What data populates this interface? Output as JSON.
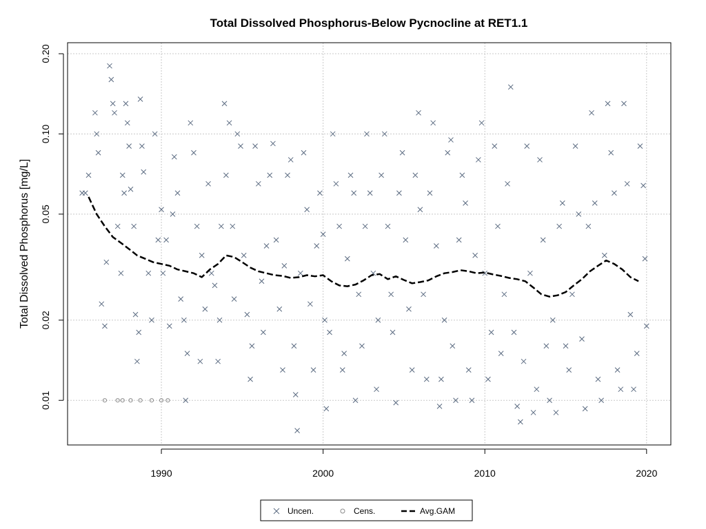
{
  "chart_data": {
    "type": "scatter",
    "title": "Total Dissolved Phosphorus-Below Pycnocline at RET1.1",
    "xlabel": "",
    "ylabel": "Total Dissolved Phosphorus [mg/L]",
    "xlim": [
      1984.2,
      2021.5
    ],
    "ylim": [
      0.0068,
      0.22
    ],
    "yscale": "log",
    "grid": true,
    "legend_position": "bottom-center",
    "x_ticks": [
      1990,
      2000,
      2010,
      2020
    ],
    "x_tick_labels": [
      "1990",
      "2000",
      "2010",
      "2020"
    ],
    "y_ticks": [
      0.01,
      0.02,
      0.05,
      0.1,
      0.2
    ],
    "y_tick_labels": [
      "0.01",
      "0.02",
      "0.05",
      "0.10",
      "0.20"
    ],
    "colors": {
      "points": "#5a6a80",
      "censored": "#8a8a8a",
      "gam": "#000000",
      "grid": "#c8c8c8"
    },
    "series": [
      {
        "name": "Uncen.",
        "marker": "x",
        "points": [
          [
            1985.1,
            0.06
          ],
          [
            1985.3,
            0.06
          ],
          [
            1985.5,
            0.07
          ],
          [
            1985.9,
            0.12
          ],
          [
            1986.0,
            0.1
          ],
          [
            1986.1,
            0.085
          ],
          [
            1986.3,
            0.023
          ],
          [
            1986.5,
            0.019
          ],
          [
            1986.6,
            0.033
          ],
          [
            1986.8,
            0.18
          ],
          [
            1986.9,
            0.16
          ],
          [
            1987.0,
            0.13
          ],
          [
            1987.1,
            0.12
          ],
          [
            1987.3,
            0.045
          ],
          [
            1987.5,
            0.03
          ],
          [
            1987.6,
            0.07
          ],
          [
            1987.7,
            0.06
          ],
          [
            1987.8,
            0.13
          ],
          [
            1987.9,
            0.11
          ],
          [
            1988.0,
            0.09
          ],
          [
            1988.1,
            0.062
          ],
          [
            1988.3,
            0.045
          ],
          [
            1988.4,
            0.021
          ],
          [
            1988.5,
            0.014
          ],
          [
            1988.6,
            0.018
          ],
          [
            1988.7,
            0.135
          ],
          [
            1988.8,
            0.09
          ],
          [
            1988.9,
            0.072
          ],
          [
            1989.2,
            0.03
          ],
          [
            1989.4,
            0.02
          ],
          [
            1989.6,
            0.1
          ],
          [
            1989.8,
            0.04
          ],
          [
            1990.0,
            0.052
          ],
          [
            1990.1,
            0.03
          ],
          [
            1990.3,
            0.04
          ],
          [
            1990.5,
            0.019
          ],
          [
            1990.7,
            0.05
          ],
          [
            1990.8,
            0.082
          ],
          [
            1991.0,
            0.06
          ],
          [
            1991.2,
            0.024
          ],
          [
            1991.4,
            0.02
          ],
          [
            1991.5,
            0.01
          ],
          [
            1991.6,
            0.015
          ],
          [
            1991.8,
            0.11
          ],
          [
            1992.0,
            0.085
          ],
          [
            1992.2,
            0.045
          ],
          [
            1992.4,
            0.014
          ],
          [
            1992.5,
            0.035
          ],
          [
            1992.7,
            0.022
          ],
          [
            1992.9,
            0.065
          ],
          [
            1993.1,
            0.03
          ],
          [
            1993.3,
            0.027
          ],
          [
            1993.5,
            0.014
          ],
          [
            1993.6,
            0.02
          ],
          [
            1993.7,
            0.045
          ],
          [
            1993.9,
            0.13
          ],
          [
            1994.0,
            0.07
          ],
          [
            1994.2,
            0.11
          ],
          [
            1994.4,
            0.045
          ],
          [
            1994.5,
            0.024
          ],
          [
            1994.7,
            0.1
          ],
          [
            1994.9,
            0.09
          ],
          [
            1995.1,
            0.035
          ],
          [
            1995.3,
            0.021
          ],
          [
            1995.5,
            0.012
          ],
          [
            1995.6,
            0.016
          ],
          [
            1995.8,
            0.09
          ],
          [
            1996.0,
            0.065
          ],
          [
            1996.2,
            0.028
          ],
          [
            1996.3,
            0.018
          ],
          [
            1996.5,
            0.038
          ],
          [
            1996.7,
            0.07
          ],
          [
            1996.9,
            0.092
          ],
          [
            1997.1,
            0.04
          ],
          [
            1997.3,
            0.022
          ],
          [
            1997.5,
            0.013
          ],
          [
            1997.6,
            0.032
          ],
          [
            1997.8,
            0.07
          ],
          [
            1998.0,
            0.08
          ],
          [
            1998.2,
            0.016
          ],
          [
            1998.3,
            0.0105
          ],
          [
            1998.4,
            0.0077
          ],
          [
            1998.6,
            0.03
          ],
          [
            1998.8,
            0.085
          ],
          [
            1999.0,
            0.052
          ],
          [
            1999.2,
            0.023
          ],
          [
            1999.4,
            0.013
          ],
          [
            1999.6,
            0.038
          ],
          [
            1999.8,
            0.06
          ],
          [
            2000.0,
            0.042
          ],
          [
            2000.1,
            0.02
          ],
          [
            2000.2,
            0.0093
          ],
          [
            2000.4,
            0.018
          ],
          [
            2000.6,
            0.1
          ],
          [
            2000.8,
            0.065
          ],
          [
            2001.0,
            0.045
          ],
          [
            2001.2,
            0.013
          ],
          [
            2001.3,
            0.015
          ],
          [
            2001.5,
            0.034
          ],
          [
            2001.7,
            0.07
          ],
          [
            2001.9,
            0.06
          ],
          [
            2002.0,
            0.01
          ],
          [
            2002.2,
            0.025
          ],
          [
            2002.4,
            0.016
          ],
          [
            2002.6,
            0.045
          ],
          [
            2002.7,
            0.1
          ],
          [
            2002.9,
            0.06
          ],
          [
            2003.1,
            0.03
          ],
          [
            2003.3,
            0.011
          ],
          [
            2003.4,
            0.02
          ],
          [
            2003.6,
            0.07
          ],
          [
            2003.8,
            0.1
          ],
          [
            2004.0,
            0.045
          ],
          [
            2004.2,
            0.025
          ],
          [
            2004.3,
            0.018
          ],
          [
            2004.5,
            0.0098
          ],
          [
            2004.7,
            0.06
          ],
          [
            2004.9,
            0.085
          ],
          [
            2005.1,
            0.04
          ],
          [
            2005.3,
            0.022
          ],
          [
            2005.5,
            0.013
          ],
          [
            2005.7,
            0.07
          ],
          [
            2005.9,
            0.12
          ],
          [
            2006.0,
            0.052
          ],
          [
            2006.2,
            0.025
          ],
          [
            2006.4,
            0.012
          ],
          [
            2006.6,
            0.06
          ],
          [
            2006.8,
            0.11
          ],
          [
            2007.0,
            0.038
          ],
          [
            2007.2,
            0.0095
          ],
          [
            2007.3,
            0.012
          ],
          [
            2007.5,
            0.02
          ],
          [
            2007.7,
            0.085
          ],
          [
            2007.9,
            0.095
          ],
          [
            2008.0,
            0.016
          ],
          [
            2008.2,
            0.01
          ],
          [
            2008.4,
            0.04
          ],
          [
            2008.6,
            0.07
          ],
          [
            2008.8,
            0.055
          ],
          [
            2009.0,
            0.013
          ],
          [
            2009.2,
            0.01
          ],
          [
            2009.4,
            0.035
          ],
          [
            2009.6,
            0.08
          ],
          [
            2009.8,
            0.11
          ],
          [
            2010.0,
            0.03
          ],
          [
            2010.2,
            0.012
          ],
          [
            2010.4,
            0.018
          ],
          [
            2010.6,
            0.09
          ],
          [
            2010.8,
            0.045
          ],
          [
            2011.0,
            0.015
          ],
          [
            2011.2,
            0.025
          ],
          [
            2011.4,
            0.065
          ],
          [
            2011.6,
            0.15
          ],
          [
            2011.8,
            0.018
          ],
          [
            2012.0,
            0.0095
          ],
          [
            2012.2,
            0.0083
          ],
          [
            2012.4,
            0.014
          ],
          [
            2012.6,
            0.09
          ],
          [
            2012.8,
            0.03
          ],
          [
            2013.0,
            0.009
          ],
          [
            2013.2,
            0.011
          ],
          [
            2013.4,
            0.08
          ],
          [
            2013.6,
            0.04
          ],
          [
            2013.8,
            0.016
          ],
          [
            2014.0,
            0.01
          ],
          [
            2014.2,
            0.02
          ],
          [
            2014.4,
            0.009
          ],
          [
            2014.6,
            0.045
          ],
          [
            2014.8,
            0.055
          ],
          [
            2015.0,
            0.016
          ],
          [
            2015.2,
            0.013
          ],
          [
            2015.4,
            0.025
          ],
          [
            2015.6,
            0.09
          ],
          [
            2015.8,
            0.05
          ],
          [
            2016.0,
            0.017
          ],
          [
            2016.2,
            0.0093
          ],
          [
            2016.4,
            0.045
          ],
          [
            2016.6,
            0.12
          ],
          [
            2016.8,
            0.055
          ],
          [
            2017.0,
            0.012
          ],
          [
            2017.2,
            0.01
          ],
          [
            2017.4,
            0.035
          ],
          [
            2017.6,
            0.13
          ],
          [
            2017.8,
            0.085
          ],
          [
            2018.0,
            0.06
          ],
          [
            2018.2,
            0.013
          ],
          [
            2018.4,
            0.011
          ],
          [
            2018.6,
            0.13
          ],
          [
            2018.8,
            0.065
          ],
          [
            2019.0,
            0.021
          ],
          [
            2019.2,
            0.011
          ],
          [
            2019.4,
            0.015
          ],
          [
            2019.6,
            0.09
          ],
          [
            2019.8,
            0.064
          ],
          [
            2019.9,
            0.034
          ],
          [
            2020.0,
            0.019
          ]
        ]
      },
      {
        "name": "Cens.",
        "marker": "o",
        "points": [
          [
            1986.5,
            0.01
          ],
          [
            1987.3,
            0.01
          ],
          [
            1987.6,
            0.01
          ],
          [
            1988.1,
            0.01
          ],
          [
            1988.7,
            0.01
          ],
          [
            1989.4,
            0.01
          ],
          [
            1990.0,
            0.01
          ],
          [
            1990.4,
            0.01
          ]
        ]
      },
      {
        "name": "Avg.GAM",
        "marker": "dashed-line",
        "points": [
          [
            1985.5,
            0.058
          ],
          [
            1986.0,
            0.05
          ],
          [
            1986.5,
            0.045
          ],
          [
            1987.0,
            0.041
          ],
          [
            1987.5,
            0.039
          ],
          [
            1988.0,
            0.037
          ],
          [
            1988.5,
            0.035
          ],
          [
            1989.0,
            0.034
          ],
          [
            1989.5,
            0.033
          ],
          [
            1990.0,
            0.0325
          ],
          [
            1990.5,
            0.032
          ],
          [
            1991.0,
            0.031
          ],
          [
            1991.5,
            0.0305
          ],
          [
            1992.0,
            0.03
          ],
          [
            1992.5,
            0.029
          ],
          [
            1993.0,
            0.031
          ],
          [
            1993.5,
            0.0325
          ],
          [
            1994.0,
            0.035
          ],
          [
            1994.5,
            0.0345
          ],
          [
            1995.0,
            0.033
          ],
          [
            1995.5,
            0.0315
          ],
          [
            1996.0,
            0.0305
          ],
          [
            1996.5,
            0.03
          ],
          [
            1997.0,
            0.0295
          ],
          [
            1997.5,
            0.0293
          ],
          [
            1998.0,
            0.0288
          ],
          [
            1998.5,
            0.029
          ],
          [
            1999.0,
            0.0295
          ],
          [
            1999.5,
            0.0292
          ],
          [
            2000.0,
            0.0295
          ],
          [
            2000.5,
            0.028
          ],
          [
            2001.0,
            0.027
          ],
          [
            2001.5,
            0.0268
          ],
          [
            2002.0,
            0.0272
          ],
          [
            2002.5,
            0.0282
          ],
          [
            2003.0,
            0.0295
          ],
          [
            2003.5,
            0.0298
          ],
          [
            2004.0,
            0.0285
          ],
          [
            2004.5,
            0.0292
          ],
          [
            2005.0,
            0.0283
          ],
          [
            2005.5,
            0.0275
          ],
          [
            2006.0,
            0.0278
          ],
          [
            2006.5,
            0.0282
          ],
          [
            2007.0,
            0.0292
          ],
          [
            2007.5,
            0.03
          ],
          [
            2008.0,
            0.0303
          ],
          [
            2008.5,
            0.0308
          ],
          [
            2009.0,
            0.0305
          ],
          [
            2009.5,
            0.03
          ],
          [
            2010.0,
            0.0302
          ],
          [
            2010.5,
            0.0297
          ],
          [
            2011.0,
            0.0293
          ],
          [
            2011.5,
            0.0288
          ],
          [
            2012.0,
            0.0285
          ],
          [
            2012.5,
            0.028
          ],
          [
            2013.0,
            0.0265
          ],
          [
            2013.5,
            0.025
          ],
          [
            2014.0,
            0.0245
          ],
          [
            2014.5,
            0.0248
          ],
          [
            2015.0,
            0.0255
          ],
          [
            2015.5,
            0.027
          ],
          [
            2016.0,
            0.0285
          ],
          [
            2016.5,
            0.0305
          ],
          [
            2017.0,
            0.032
          ],
          [
            2017.5,
            0.0335
          ],
          [
            2018.0,
            0.0325
          ],
          [
            2018.5,
            0.031
          ],
          [
            2019.0,
            0.029
          ],
          [
            2019.5,
            0.028
          ]
        ]
      }
    ]
  }
}
